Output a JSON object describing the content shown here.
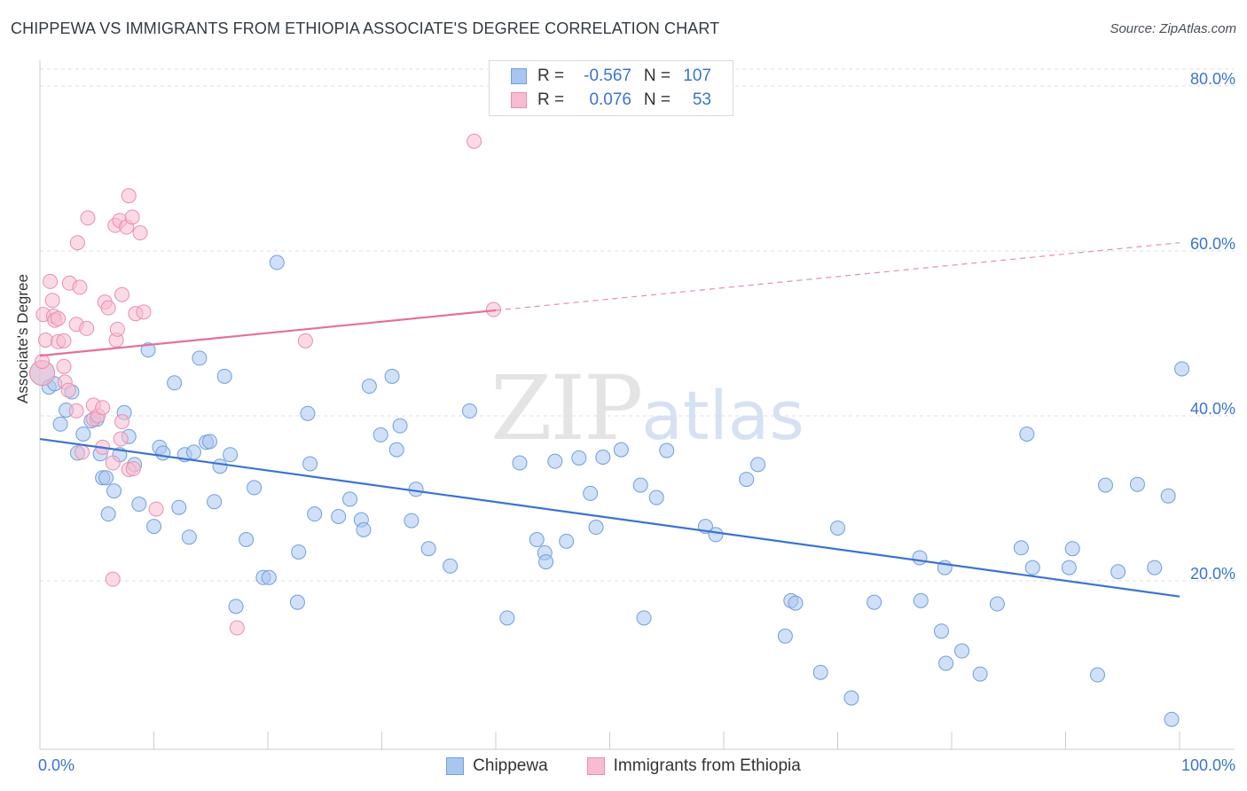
{
  "title": "CHIPPEWA VS IMMIGRANTS FROM ETHIOPIA ASSOCIATE'S DEGREE CORRELATION CHART",
  "source": "Source: ZipAtlas.com",
  "watermark": {
    "zip": "ZIP",
    "atlas": "atlas"
  },
  "legend": {
    "rows": [
      {
        "r_label": "R =",
        "r_value": "-0.567",
        "n_label": "N =",
        "n_value": "107",
        "color": "#a9c6ef",
        "border": "#6f9fdf"
      },
      {
        "r_label": "R =",
        "r_value": "0.076",
        "n_label": "N =",
        "n_value": "53",
        "color": "#f7bcd0",
        "border": "#ea8fad"
      }
    ]
  },
  "bottom_legend": [
    {
      "label": "Chippewa",
      "color": "#a9c6ef",
      "border": "#6f9fdf"
    },
    {
      "label": "Immigrants from Ethiopia",
      "color": "#f7bcd0",
      "border": "#ea8fad"
    }
  ],
  "chart_data": {
    "type": "scatter",
    "title": "CHIPPEWA VS IMMIGRANTS FROM ETHIOPIA ASSOCIATE'S DEGREE CORRELATION CHART",
    "xlabel": "",
    "ylabel": "Associate's Degree",
    "xlim": [
      0,
      100
    ],
    "ylim": [
      0,
      82
    ],
    "x_tick_labels": [
      "0.0%",
      "100.0%"
    ],
    "y_ticks": [
      20,
      40,
      60,
      80
    ],
    "y_tick_labels": [
      "20.0%",
      "40.0%",
      "60.0%",
      "80.0%"
    ],
    "grid": true,
    "legend_placement": "top-center",
    "series": [
      {
        "name": "Chippewa",
        "color": "#6f9fdf",
        "fill": "#a9c6ef",
        "trend": {
          "x": [
            0,
            100
          ],
          "y": [
            37.2,
            18.1
          ],
          "color": "#3b73d1",
          "dashed_from_x": null
        },
        "points": [
          [
            0.2,
            45.2
          ],
          [
            0.8,
            43.5
          ],
          [
            1.3,
            43.9
          ],
          [
            1.8,
            39
          ],
          [
            2.3,
            40.7
          ],
          [
            2.8,
            42.9
          ],
          [
            3.3,
            35.5
          ],
          [
            3.8,
            37.8
          ],
          [
            4.5,
            39.4
          ],
          [
            5,
            39.6
          ],
          [
            5.3,
            35.4
          ],
          [
            5.5,
            32.5
          ],
          [
            5.8,
            32.5
          ],
          [
            6,
            28.1
          ],
          [
            6.5,
            30.9
          ],
          [
            7,
            35.3
          ],
          [
            7.4,
            40.4
          ],
          [
            7.8,
            37.5
          ],
          [
            8.3,
            34.1
          ],
          [
            8.7,
            29.3
          ],
          [
            9.5,
            48
          ],
          [
            10,
            26.6
          ],
          [
            10.5,
            36.2
          ],
          [
            10.8,
            35.5
          ],
          [
            11.8,
            44
          ],
          [
            12.2,
            28.9
          ],
          [
            12.7,
            35.3
          ],
          [
            13.1,
            25.3
          ],
          [
            13.5,
            35.6
          ],
          [
            14,
            47
          ],
          [
            14.6,
            36.8
          ],
          [
            14.9,
            36.9
          ],
          [
            15.3,
            29.6
          ],
          [
            15.8,
            33.9
          ],
          [
            16.2,
            44.8
          ],
          [
            16.7,
            35.3
          ],
          [
            17.2,
            16.9
          ],
          [
            18.1,
            25
          ],
          [
            18.8,
            31.3
          ],
          [
            19.6,
            20.4
          ],
          [
            20.1,
            20.4
          ],
          [
            20.8,
            58.6
          ],
          [
            22.6,
            17.4
          ],
          [
            22.7,
            23.5
          ],
          [
            23.5,
            40.3
          ],
          [
            23.7,
            34.2
          ],
          [
            24.1,
            28.1
          ],
          [
            26.2,
            27.8
          ],
          [
            27.2,
            29.9
          ],
          [
            28.2,
            27.4
          ],
          [
            28.4,
            26.2
          ],
          [
            28.9,
            43.6
          ],
          [
            29.9,
            37.7
          ],
          [
            30.9,
            44.8
          ],
          [
            31.3,
            35.9
          ],
          [
            31.6,
            38.8
          ],
          [
            32.6,
            27.3
          ],
          [
            33,
            31.1
          ],
          [
            34.1,
            23.9
          ],
          [
            36,
            21.8
          ],
          [
            37.7,
            40.6
          ],
          [
            41,
            15.5
          ],
          [
            42.1,
            34.3
          ],
          [
            43.6,
            25
          ],
          [
            44.3,
            23.4
          ],
          [
            44.4,
            22.3
          ],
          [
            45.2,
            34.5
          ],
          [
            46.2,
            24.8
          ],
          [
            47.3,
            34.9
          ],
          [
            48.3,
            30.6
          ],
          [
            48.8,
            26.5
          ],
          [
            49.4,
            35
          ],
          [
            51,
            35.9
          ],
          [
            52.7,
            31.6
          ],
          [
            53,
            15.5
          ],
          [
            54.1,
            30.1
          ],
          [
            55,
            35.8
          ],
          [
            58.4,
            26.6
          ],
          [
            59.3,
            25.6
          ],
          [
            62,
            32.3
          ],
          [
            63,
            34.1
          ],
          [
            65.4,
            13.3
          ],
          [
            65.9,
            17.6
          ],
          [
            66.3,
            17.3
          ],
          [
            68.5,
            8.9
          ],
          [
            70,
            26.4
          ],
          [
            71.2,
            5.8
          ],
          [
            73.2,
            17.4
          ],
          [
            77.2,
            22.8
          ],
          [
            77.3,
            17.6
          ],
          [
            79.1,
            13.9
          ],
          [
            79.4,
            21.6
          ],
          [
            79.5,
            10
          ],
          [
            80.9,
            11.5
          ],
          [
            82.5,
            8.7
          ],
          [
            84,
            17.2
          ],
          [
            86.1,
            24
          ],
          [
            86.6,
            37.8
          ],
          [
            87.1,
            21.6
          ],
          [
            90.3,
            21.6
          ],
          [
            90.6,
            23.9
          ],
          [
            92.8,
            8.6
          ],
          [
            93.5,
            31.6
          ],
          [
            94.6,
            21.1
          ],
          [
            96.3,
            31.7
          ],
          [
            97.8,
            21.6
          ],
          [
            99,
            30.3
          ],
          [
            99.3,
            3.2
          ],
          [
            100.2,
            45.7
          ]
        ]
      },
      {
        "name": "Immigrants from Ethiopia",
        "color": "#ea8fad",
        "fill": "#f7bcd0",
        "trend": {
          "x": [
            0,
            40,
            100
          ],
          "y": [
            47.3,
            52.8,
            61
          ],
          "color": "#e56f98",
          "dashed_from_x": 40
        },
        "points": [
          [
            0.2,
            45.2
          ],
          [
            0.2,
            46.6
          ],
          [
            0.3,
            52.3
          ],
          [
            0.5,
            49.2
          ],
          [
            0.9,
            56.3
          ],
          [
            1.1,
            54
          ],
          [
            1.2,
            52.1
          ],
          [
            1.3,
            51.6
          ],
          [
            1.6,
            51.8
          ],
          [
            1.6,
            49
          ],
          [
            2.1,
            49.1
          ],
          [
            2.1,
            46
          ],
          [
            2.2,
            44.1
          ],
          [
            2.5,
            43.1
          ],
          [
            2.6,
            56.1
          ],
          [
            3.2,
            40.6
          ],
          [
            3.2,
            51.1
          ],
          [
            3.3,
            61
          ],
          [
            3.5,
            55.6
          ],
          [
            3.7,
            35.6
          ],
          [
            4.1,
            50.6
          ],
          [
            4.2,
            64
          ],
          [
            4.7,
            39.6
          ],
          [
            4.7,
            41.3
          ],
          [
            5.1,
            40
          ],
          [
            5.5,
            41
          ],
          [
            5.5,
            36.2
          ],
          [
            5.7,
            53.8
          ],
          [
            6,
            53.1
          ],
          [
            6.4,
            34.3
          ],
          [
            6.4,
            20.2
          ],
          [
            6.6,
            63.1
          ],
          [
            6.7,
            49.2
          ],
          [
            6.8,
            50.5
          ],
          [
            7,
            63.7
          ],
          [
            7.1,
            37.2
          ],
          [
            7.2,
            54.7
          ],
          [
            7.2,
            39.3
          ],
          [
            7.6,
            62.9
          ],
          [
            7.8,
            33.5
          ],
          [
            7.8,
            66.7
          ],
          [
            8.1,
            64.1
          ],
          [
            8.2,
            33.6
          ],
          [
            8.4,
            52.4
          ],
          [
            8.8,
            62.2
          ],
          [
            9.1,
            52.6
          ],
          [
            10.2,
            28.7
          ],
          [
            17.3,
            14.3
          ],
          [
            23.3,
            49.1
          ],
          [
            38.1,
            73.3
          ],
          [
            39.8,
            52.9
          ]
        ]
      }
    ]
  }
}
